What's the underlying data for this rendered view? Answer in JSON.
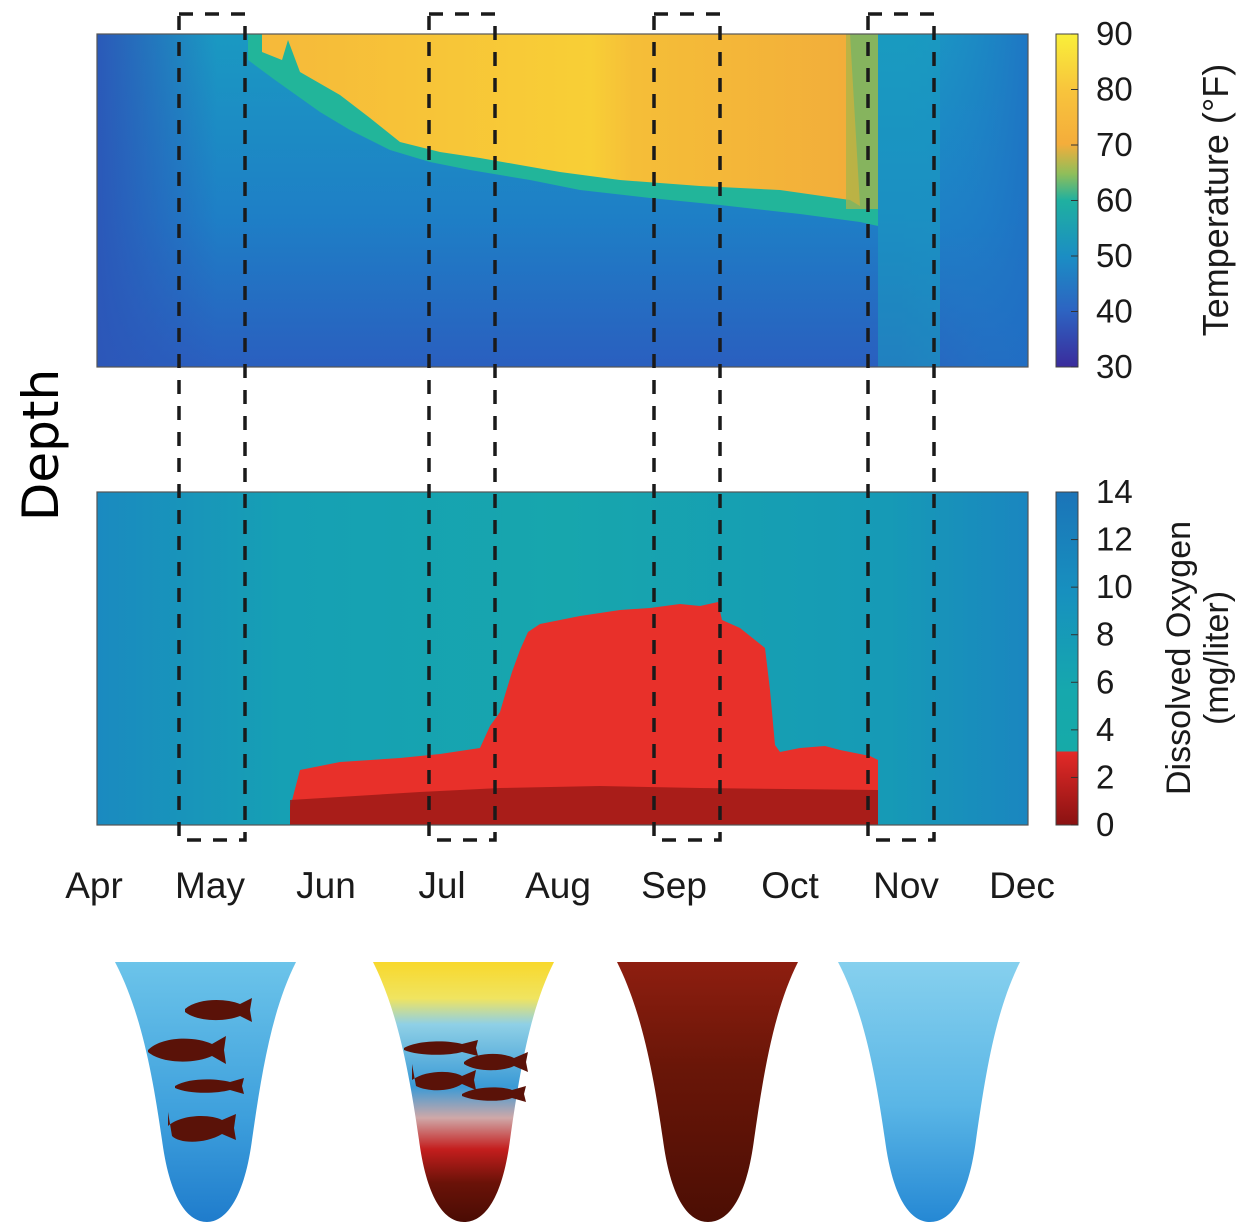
{
  "y_axis_label": "Depth",
  "months": [
    "Apr",
    "May",
    "Jun",
    "Jul",
    "Aug",
    "Sep",
    "Oct",
    "Nov",
    "Dec"
  ],
  "highlight_windows": [
    "May",
    "Jul",
    "Sep",
    "Nov"
  ],
  "colors": {
    "cold": "#2f5fb8",
    "mid": "#1aa3a3",
    "warm": "#f5b13a",
    "hot": "#f7e23a",
    "low_oxygen": "#e82a26",
    "anoxic": "#8a1414",
    "dashed_box": "#1a1a1a"
  },
  "chart_data": [
    {
      "type": "heatmap",
      "name": "temperature",
      "colorbar_label": "Temperature (°F)",
      "colorbar_ticks": [
        "90",
        "80",
        "70",
        "60",
        "50",
        "40",
        "30"
      ],
      "range": [
        30,
        90
      ],
      "x_categories": [
        "Apr",
        "May",
        "Jun",
        "Jul",
        "Aug",
        "Sep",
        "Oct",
        "Nov",
        "Dec"
      ],
      "surface_warm_layer_depth_fraction": [
        {
          "month": "May",
          "depth": 0.05
        },
        {
          "month": "Jun",
          "depth": 0.32
        },
        {
          "month": "Jul",
          "depth": 0.44
        },
        {
          "month": "Aug",
          "depth": 0.52
        },
        {
          "month": "Sep",
          "depth": 0.57
        },
        {
          "month": "Oct",
          "depth": 0.65
        },
        {
          "month": "Nov",
          "depth": 0.0
        }
      ]
    },
    {
      "type": "heatmap",
      "name": "dissolved_oxygen",
      "colorbar_label": "Dissolved Oxygen (mg/liter)",
      "colorbar_ticks": [
        "14",
        "12",
        "10",
        "8",
        "6",
        "4",
        "2",
        "0"
      ],
      "range": [
        0,
        14
      ],
      "x_categories": [
        "Apr",
        "May",
        "Jun",
        "Jul",
        "Aug",
        "Sep",
        "Oct",
        "Nov",
        "Dec"
      ],
      "low_oxygen_threshold": 3,
      "low_oxygen_top_depth_fraction": [
        {
          "month": "Jun",
          "depth": 0.86
        },
        {
          "month": "Jul",
          "depth": 0.78
        },
        {
          "month": "Aug",
          "depth": 0.55
        },
        {
          "month": "Aug-mid",
          "depth": 0.37
        },
        {
          "month": "Sep",
          "depth": 0.33
        },
        {
          "month": "Oct",
          "depth": 0.45
        },
        {
          "month": "Oct-late",
          "depth": 0.78
        }
      ]
    }
  ],
  "lake_diagrams": [
    {
      "season": "May",
      "fish_count": 4
    },
    {
      "season": "Jul",
      "fish_count": 4
    },
    {
      "season": "Sep",
      "fish_count": 0
    },
    {
      "season": "Nov",
      "fish_count": 0
    }
  ]
}
